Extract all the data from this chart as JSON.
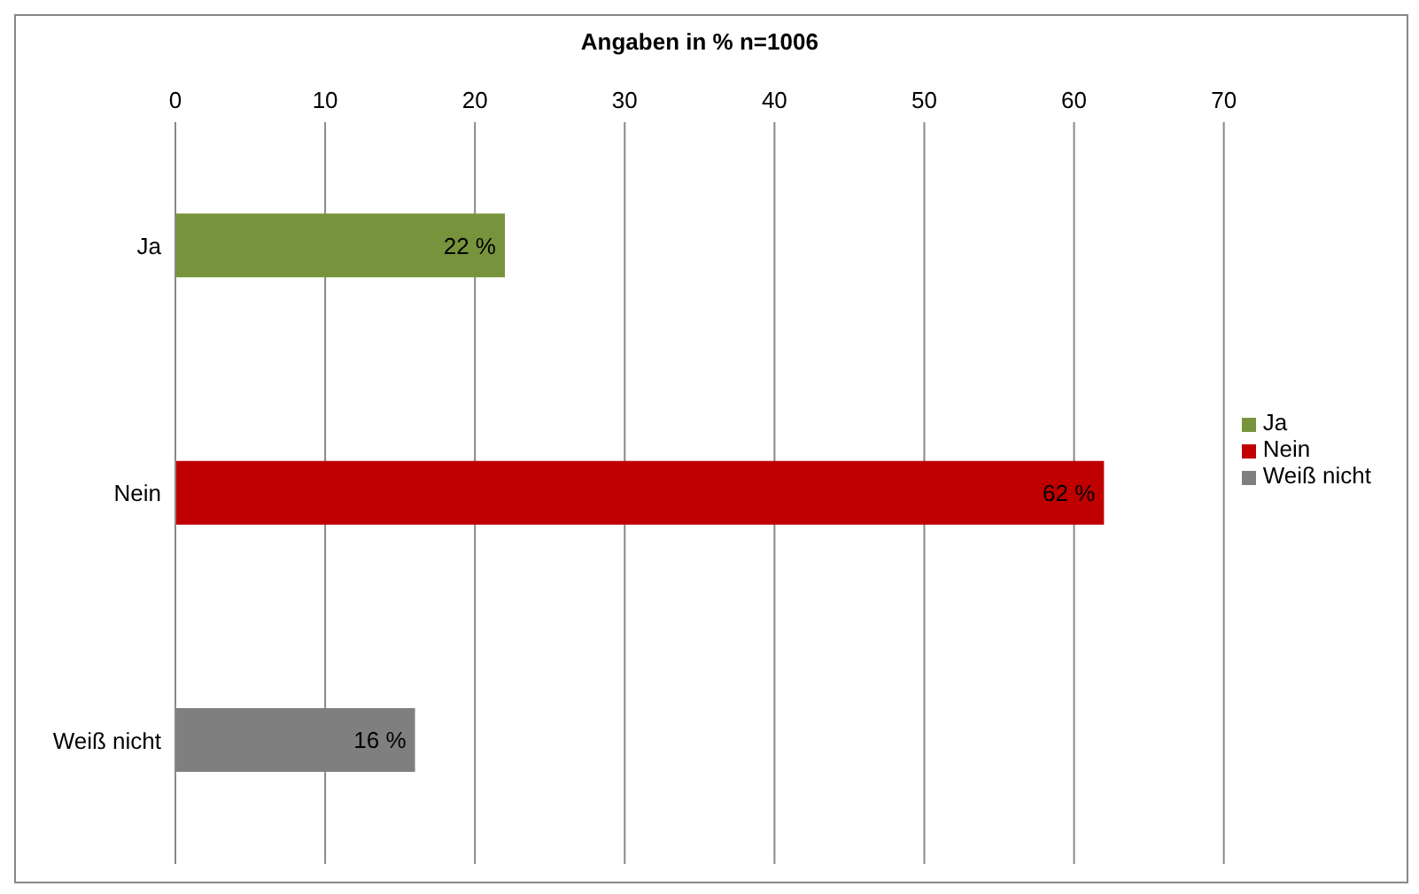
{
  "chart_data": {
    "type": "bar",
    "orientation": "horizontal",
    "stacked": true,
    "xlabel": "Angaben in %  n=1006",
    "categories": [
      "Ja",
      "Nein",
      "Weiß nicht"
    ],
    "series": [
      {
        "name": "Ja",
        "color": "#77933c",
        "values": [
          22,
          null,
          null
        ],
        "value_labels": [
          "22 %",
          null,
          null
        ]
      },
      {
        "name": "Nein",
        "color": "#c00000",
        "values": [
          null,
          62,
          null
        ],
        "value_labels": [
          null,
          "62 %",
          null
        ]
      },
      {
        "name": "Weiß nicht",
        "color": "#7f7f7f",
        "values": [
          null,
          null,
          16
        ],
        "value_labels": [
          null,
          null,
          "16 %"
        ]
      }
    ],
    "xlim": [
      0,
      70
    ],
    "xticks": [
      0,
      10,
      20,
      30,
      40,
      50,
      60,
      70
    ],
    "grid": "x",
    "legend": "right"
  }
}
